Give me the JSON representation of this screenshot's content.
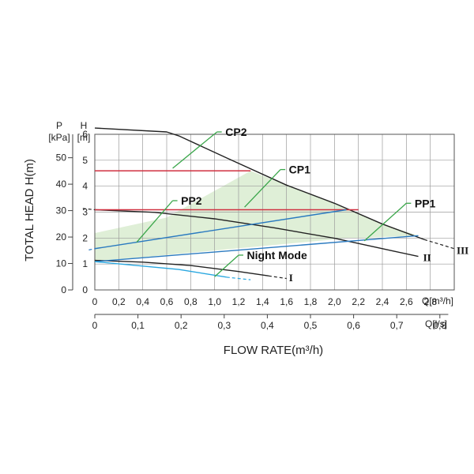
{
  "chart_data": {
    "type": "line",
    "xlabel": "FLOW RATE(m³/h)",
    "ylabel": "TOTAL HEAD H(m)",
    "y_unit_kpa": "P",
    "y_unit_kpa_sub": "[kPa]",
    "y_unit_m": "H",
    "y_unit_m_sub": "[m]",
    "x_unit_m3h": "Q[m³/h]",
    "x_unit_ls": "Q[l/s]",
    "xlim": [
      0,
      3.0
    ],
    "ylim": [
      0,
      6.0
    ],
    "grid": true,
    "x_ticks_m3h": [
      "0",
      "0,2",
      "0,4",
      "0,6",
      "0,8",
      "1,0",
      "1,2",
      "1,4",
      "1,6",
      "1,8",
      "2,0",
      "2,2",
      "2,4",
      "2,6",
      "2,8"
    ],
    "x_ticks_ls": [
      "0",
      "0,1",
      "0,2",
      "0,3",
      "0,4",
      "0,5",
      "0,6",
      "0,7",
      "0,8"
    ],
    "y_ticks_m": [
      "0",
      "1",
      "2",
      "3",
      "4",
      "5",
      "6"
    ],
    "y_ticks_kpa": [
      "0",
      "10",
      "20",
      "30",
      "40",
      "50"
    ],
    "series": [
      {
        "name": "III",
        "color": "#222222",
        "x": [
          0,
          0.6,
          0.7,
          1.1,
          1.6,
          2.0,
          2.4,
          2.75
        ],
        "y": [
          6.15,
          6.0,
          5.85,
          5.0,
          3.95,
          3.25,
          2.45,
          1.85
        ],
        "dash_x": [
          2.75,
          3.0
        ],
        "dash_y": [
          1.85,
          1.5
        ]
      },
      {
        "name": "II",
        "color": "#222222",
        "x": [
          0,
          0.5,
          1.0,
          1.5,
          2.0,
          2.5,
          2.7
        ],
        "y": [
          3.0,
          2.9,
          2.65,
          2.3,
          1.9,
          1.4,
          1.2
        ],
        "dash_x": [
          -0.1,
          0
        ],
        "dash_y": [
          3.05,
          3.0
        ]
      },
      {
        "name": "I",
        "color": "#222222",
        "x": [
          0,
          0.4,
          0.8,
          1.2,
          1.45
        ],
        "y": [
          1.05,
          0.98,
          0.85,
          0.62,
          0.45
        ],
        "dash_x": [
          1.45,
          1.6
        ],
        "dash_y": [
          0.45,
          0.35
        ]
      },
      {
        "name": "CP2",
        "color": "#d03040",
        "x": [
          0,
          1.3
        ],
        "y": [
          4.5,
          4.5
        ]
      },
      {
        "name": "CP1",
        "color": "#d03040",
        "x": [
          0,
          2.2
        ],
        "y": [
          3.0,
          3.0
        ]
      },
      {
        "name": "PP2",
        "color": "#2a7ac0",
        "x": [
          0,
          2.1
        ],
        "y": [
          1.5,
          3.0
        ],
        "dash_x": [
          -0.05,
          0
        ],
        "dash_y": [
          1.45,
          1.5
        ]
      },
      {
        "name": "PP1",
        "color": "#2a7ac0",
        "x": [
          0,
          2.7
        ],
        "y": [
          1.0,
          2.0
        ]
      },
      {
        "name": "Night Mode",
        "color": "#29a7e0",
        "x": [
          0,
          0.7,
          1.1
        ],
        "y": [
          1.0,
          0.7,
          0.4
        ],
        "dash_x": [
          1.1,
          1.3
        ],
        "dash_y": [
          0.4,
          0.3
        ]
      }
    ],
    "shaded_region": {
      "color": "#d9ecd0",
      "x": [
        0,
        0.6,
        1.3,
        1.6,
        2.0,
        2.4,
        2.7,
        2.1,
        0
      ],
      "y": [
        2.1,
        2.7,
        4.5,
        3.95,
        3.25,
        2.45,
        2.0,
        1.9,
        1.0
      ]
    },
    "labels": [
      {
        "text": "CP2",
        "leader_from": [
          0.65,
          4.6
        ],
        "leader_to": [
          1.02,
          6.0
        ],
        "text_at": [
          1.05,
          6.0
        ]
      },
      {
        "text": "CP1",
        "leader_from": [
          1.25,
          3.1
        ],
        "leader_to": [
          1.55,
          4.55
        ],
        "text_at": [
          1.58,
          4.55
        ]
      },
      {
        "text": "PP2",
        "leader_from": [
          0.35,
          1.75
        ],
        "leader_to": [
          0.65,
          3.35
        ],
        "text_at": [
          0.68,
          3.35
        ]
      },
      {
        "text": "PP1",
        "leader_from": [
          2.25,
          1.8
        ],
        "leader_to": [
          2.6,
          3.25
        ],
        "text_at": [
          2.63,
          3.25
        ]
      },
      {
        "text": "Night Mode",
        "leader_from": [
          1.0,
          0.42
        ],
        "leader_to": [
          1.2,
          1.25
        ],
        "text_at": [
          1.23,
          1.25
        ]
      },
      {
        "text": "I",
        "at": [
          1.62,
          0.4
        ]
      },
      {
        "text": "II",
        "at": [
          2.74,
          1.18
        ]
      },
      {
        "text": "III",
        "at": [
          3.02,
          1.45
        ]
      }
    ]
  }
}
